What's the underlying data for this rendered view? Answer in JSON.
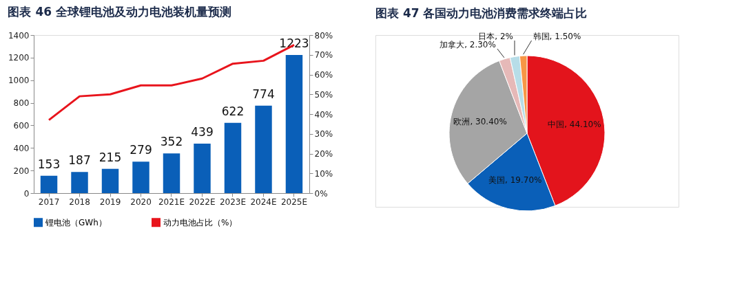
{
  "chart_data": [
    {
      "type": "bar",
      "title": "图表 46   全球锂电池及动力电池装机量预测",
      "categories": [
        "2017",
        "2018",
        "2019",
        "2020",
        "2021E",
        "2022E",
        "2023E",
        "2024E",
        "2025E"
      ],
      "series": [
        {
          "name": "锂电池（GWh）",
          "type": "bar",
          "color": "#0a5fb8",
          "values": [
            153,
            187,
            215,
            279,
            352,
            439,
            622,
            774,
            1223
          ],
          "value_labels": [
            "153",
            "187",
            "215",
            "279",
            "352",
            "439",
            "622",
            "774",
            "1223"
          ]
        },
        {
          "name": "动力电池占比（%）",
          "type": "line",
          "axis": "y2",
          "color": "#e8141c",
          "values": [
            37,
            49,
            50,
            54.5,
            54.5,
            58,
            65.5,
            67,
            75
          ]
        }
      ],
      "ylim": [
        0,
        1400
      ],
      "yticks": [
        0,
        200,
        400,
        600,
        800,
        1000,
        1200,
        1400
      ],
      "y2lim": [
        0,
        80
      ],
      "y2ticks": [
        {
          "value": 0,
          "label": "0%"
        },
        {
          "value": 10,
          "label": "10%"
        },
        {
          "value": 20,
          "label": "20%"
        },
        {
          "value": 30,
          "label": "30%"
        },
        {
          "value": 40,
          "label": "40%"
        },
        {
          "value": 50,
          "label": "50%"
        },
        {
          "value": 60,
          "label": "60%"
        },
        {
          "value": 70,
          "label": "70%"
        },
        {
          "value": 80,
          "label": "80%"
        }
      ],
      "grid": false,
      "legend": "bottom",
      "marker": "none",
      "line_style": "solid"
    },
    {
      "type": "pie",
      "title": "图表 47   各国动力电池消费需求终端占比",
      "categories": [
        "中国",
        "美国",
        "欧洲",
        "加拿大",
        "日本",
        "韩国"
      ],
      "values": [
        44.1,
        19.7,
        30.4,
        2.3,
        2,
        1.5
      ],
      "colors": [
        "#e3141c",
        "#0a5fb8",
        "#a5a5a5",
        "#e6b9b8",
        "#b7dde8",
        "#f79646"
      ],
      "value_labels": [
        "44.10%",
        "19.70%",
        "30.40%",
        "2.30%",
        "2%",
        "1.50%"
      ],
      "legend": false
    }
  ]
}
